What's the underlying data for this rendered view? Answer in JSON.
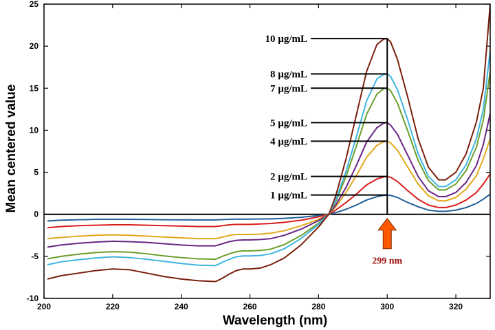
{
  "chart_data": {
    "type": "line",
    "title": "",
    "xlabel": "Wavelength (nm)",
    "ylabel": "Mean centered value",
    "xlim": [
      200,
      330
    ],
    "ylim": [
      -10,
      25
    ],
    "xticks": [
      200,
      220,
      240,
      260,
      280,
      300,
      320
    ],
    "yticks": [
      -10,
      -5,
      0,
      5,
      10,
      15,
      20,
      25
    ],
    "x": [
      201,
      205,
      210,
      215,
      220,
      225,
      230,
      235,
      240,
      245,
      250,
      252,
      254,
      256,
      258,
      260,
      263,
      266,
      270,
      275,
      280,
      283,
      285,
      288,
      291,
      294,
      297,
      299,
      300,
      301,
      303,
      306,
      309,
      312,
      315,
      317,
      320,
      323,
      326,
      328,
      330
    ],
    "series": [
      {
        "name": "1 µg/mL",
        "color": "#1f5f9a",
        "values": [
          -0.8,
          -0.7,
          -0.65,
          -0.6,
          -0.6,
          -0.6,
          -0.62,
          -0.65,
          -0.66,
          -0.67,
          -0.67,
          -0.63,
          -0.6,
          -0.58,
          -0.58,
          -0.58,
          -0.56,
          -0.54,
          -0.48,
          -0.35,
          -0.15,
          0.0,
          0.2,
          0.6,
          1.1,
          1.7,
          2.1,
          2.25,
          2.3,
          2.25,
          2.0,
          1.4,
          0.9,
          0.5,
          0.35,
          0.35,
          0.5,
          0.8,
          1.3,
          1.8,
          2.4
        ]
      },
      {
        "name": "2 µg/mL",
        "color": "#d91e1e",
        "values": [
          -1.6,
          -1.45,
          -1.35,
          -1.3,
          -1.25,
          -1.25,
          -1.3,
          -1.35,
          -1.4,
          -1.45,
          -1.45,
          -1.35,
          -1.25,
          -1.2,
          -1.2,
          -1.2,
          -1.15,
          -1.1,
          -0.95,
          -0.7,
          -0.3,
          0.0,
          0.5,
          1.4,
          2.4,
          3.5,
          4.2,
          4.45,
          4.5,
          4.4,
          3.9,
          2.8,
          1.8,
          1.1,
          0.8,
          0.8,
          1.1,
          1.7,
          2.6,
          3.6,
          4.8
        ]
      },
      {
        "name": "4 µg/mL",
        "color": "#e3a81b",
        "values": [
          -2.9,
          -2.75,
          -2.6,
          -2.5,
          -2.45,
          -2.5,
          -2.6,
          -2.7,
          -2.8,
          -2.9,
          -2.9,
          -2.7,
          -2.5,
          -2.4,
          -2.4,
          -2.4,
          -2.35,
          -2.25,
          -1.95,
          -1.35,
          -0.6,
          0.0,
          0.9,
          2.6,
          4.6,
          6.8,
          8.2,
          8.65,
          8.7,
          8.5,
          7.6,
          5.6,
          3.6,
          2.2,
          1.6,
          1.6,
          2.0,
          3.0,
          4.6,
          6.6,
          9.0
        ]
      },
      {
        "name": "5 µg/mL",
        "color": "#6a2585",
        "values": [
          -3.9,
          -3.65,
          -3.45,
          -3.3,
          -3.2,
          -3.25,
          -3.35,
          -3.5,
          -3.65,
          -3.75,
          -3.75,
          -3.5,
          -3.25,
          -3.1,
          -3.05,
          -3.05,
          -3.0,
          -2.9,
          -2.5,
          -1.75,
          -0.75,
          0.0,
          1.1,
          3.2,
          5.8,
          8.6,
          10.3,
          10.85,
          10.9,
          10.6,
          9.5,
          7.0,
          4.5,
          2.8,
          2.1,
          2.1,
          2.6,
          3.8,
          5.8,
          8.3,
          12.0
        ]
      },
      {
        "name": "7 µg/mL",
        "color": "#6b9e2a",
        "values": [
          -5.3,
          -5.0,
          -4.75,
          -4.55,
          -4.45,
          -4.5,
          -4.7,
          -4.95,
          -5.15,
          -5.3,
          -5.35,
          -5.0,
          -4.7,
          -4.45,
          -4.35,
          -4.35,
          -4.3,
          -4.15,
          -3.6,
          -2.5,
          -1.05,
          0.0,
          1.5,
          4.5,
          8.1,
          11.9,
          14.3,
          14.95,
          15.0,
          14.7,
          13.2,
          9.9,
          6.4,
          4.0,
          2.9,
          2.9,
          3.6,
          5.2,
          8.0,
          11.2,
          17.0
        ]
      },
      {
        "name": "8 µg/mL",
        "color": "#3fb4e0",
        "values": [
          -6.0,
          -5.65,
          -5.4,
          -5.2,
          -5.05,
          -5.15,
          -5.35,
          -5.6,
          -5.85,
          -6.05,
          -6.1,
          -5.7,
          -5.35,
          -5.05,
          -4.95,
          -4.95,
          -4.9,
          -4.7,
          -4.1,
          -2.85,
          -1.2,
          0.0,
          1.7,
          5.1,
          9.2,
          13.5,
          16.1,
          16.65,
          16.7,
          16.4,
          14.8,
          11.2,
          7.2,
          4.5,
          3.3,
          3.3,
          4.1,
          5.9,
          9.0,
          12.5,
          19.5
        ]
      },
      {
        "name": "10 µg/mL",
        "color": "#7a1f0c",
        "values": [
          -7.7,
          -7.3,
          -7.0,
          -6.7,
          -6.5,
          -6.6,
          -7.0,
          -7.4,
          -7.7,
          -7.9,
          -8.0,
          -7.6,
          -7.1,
          -6.7,
          -6.5,
          -6.5,
          -6.4,
          -6.0,
          -5.2,
          -3.6,
          -1.5,
          0.0,
          2.2,
          6.6,
          11.8,
          17.0,
          20.2,
          20.85,
          20.9,
          20.5,
          18.4,
          13.9,
          9.0,
          5.6,
          4.1,
          4.1,
          5.0,
          7.2,
          11.0,
          15.0,
          25.0
        ]
      }
    ],
    "annotations": [
      {
        "text": "10 µg/mL",
        "x": 300,
        "y": 20.9
      },
      {
        "text": "8 µg/mL",
        "x": 300,
        "y": 16.7
      },
      {
        "text": "7 µg/mL",
        "x": 300,
        "y": 15.0
      },
      {
        "text": "5 µg/mL",
        "x": 300,
        "y": 10.9
      },
      {
        "text": "4 µg/mL",
        "x": 300,
        "y": 8.7
      },
      {
        "text": "2 µg/mL",
        "x": 300,
        "y": 4.5
      },
      {
        "text": "1 µg/mL",
        "x": 300,
        "y": 2.3
      }
    ],
    "marker": {
      "text": "299 nm",
      "x": 300,
      "color": "#ff5a00",
      "text_color": "#a01010"
    }
  }
}
